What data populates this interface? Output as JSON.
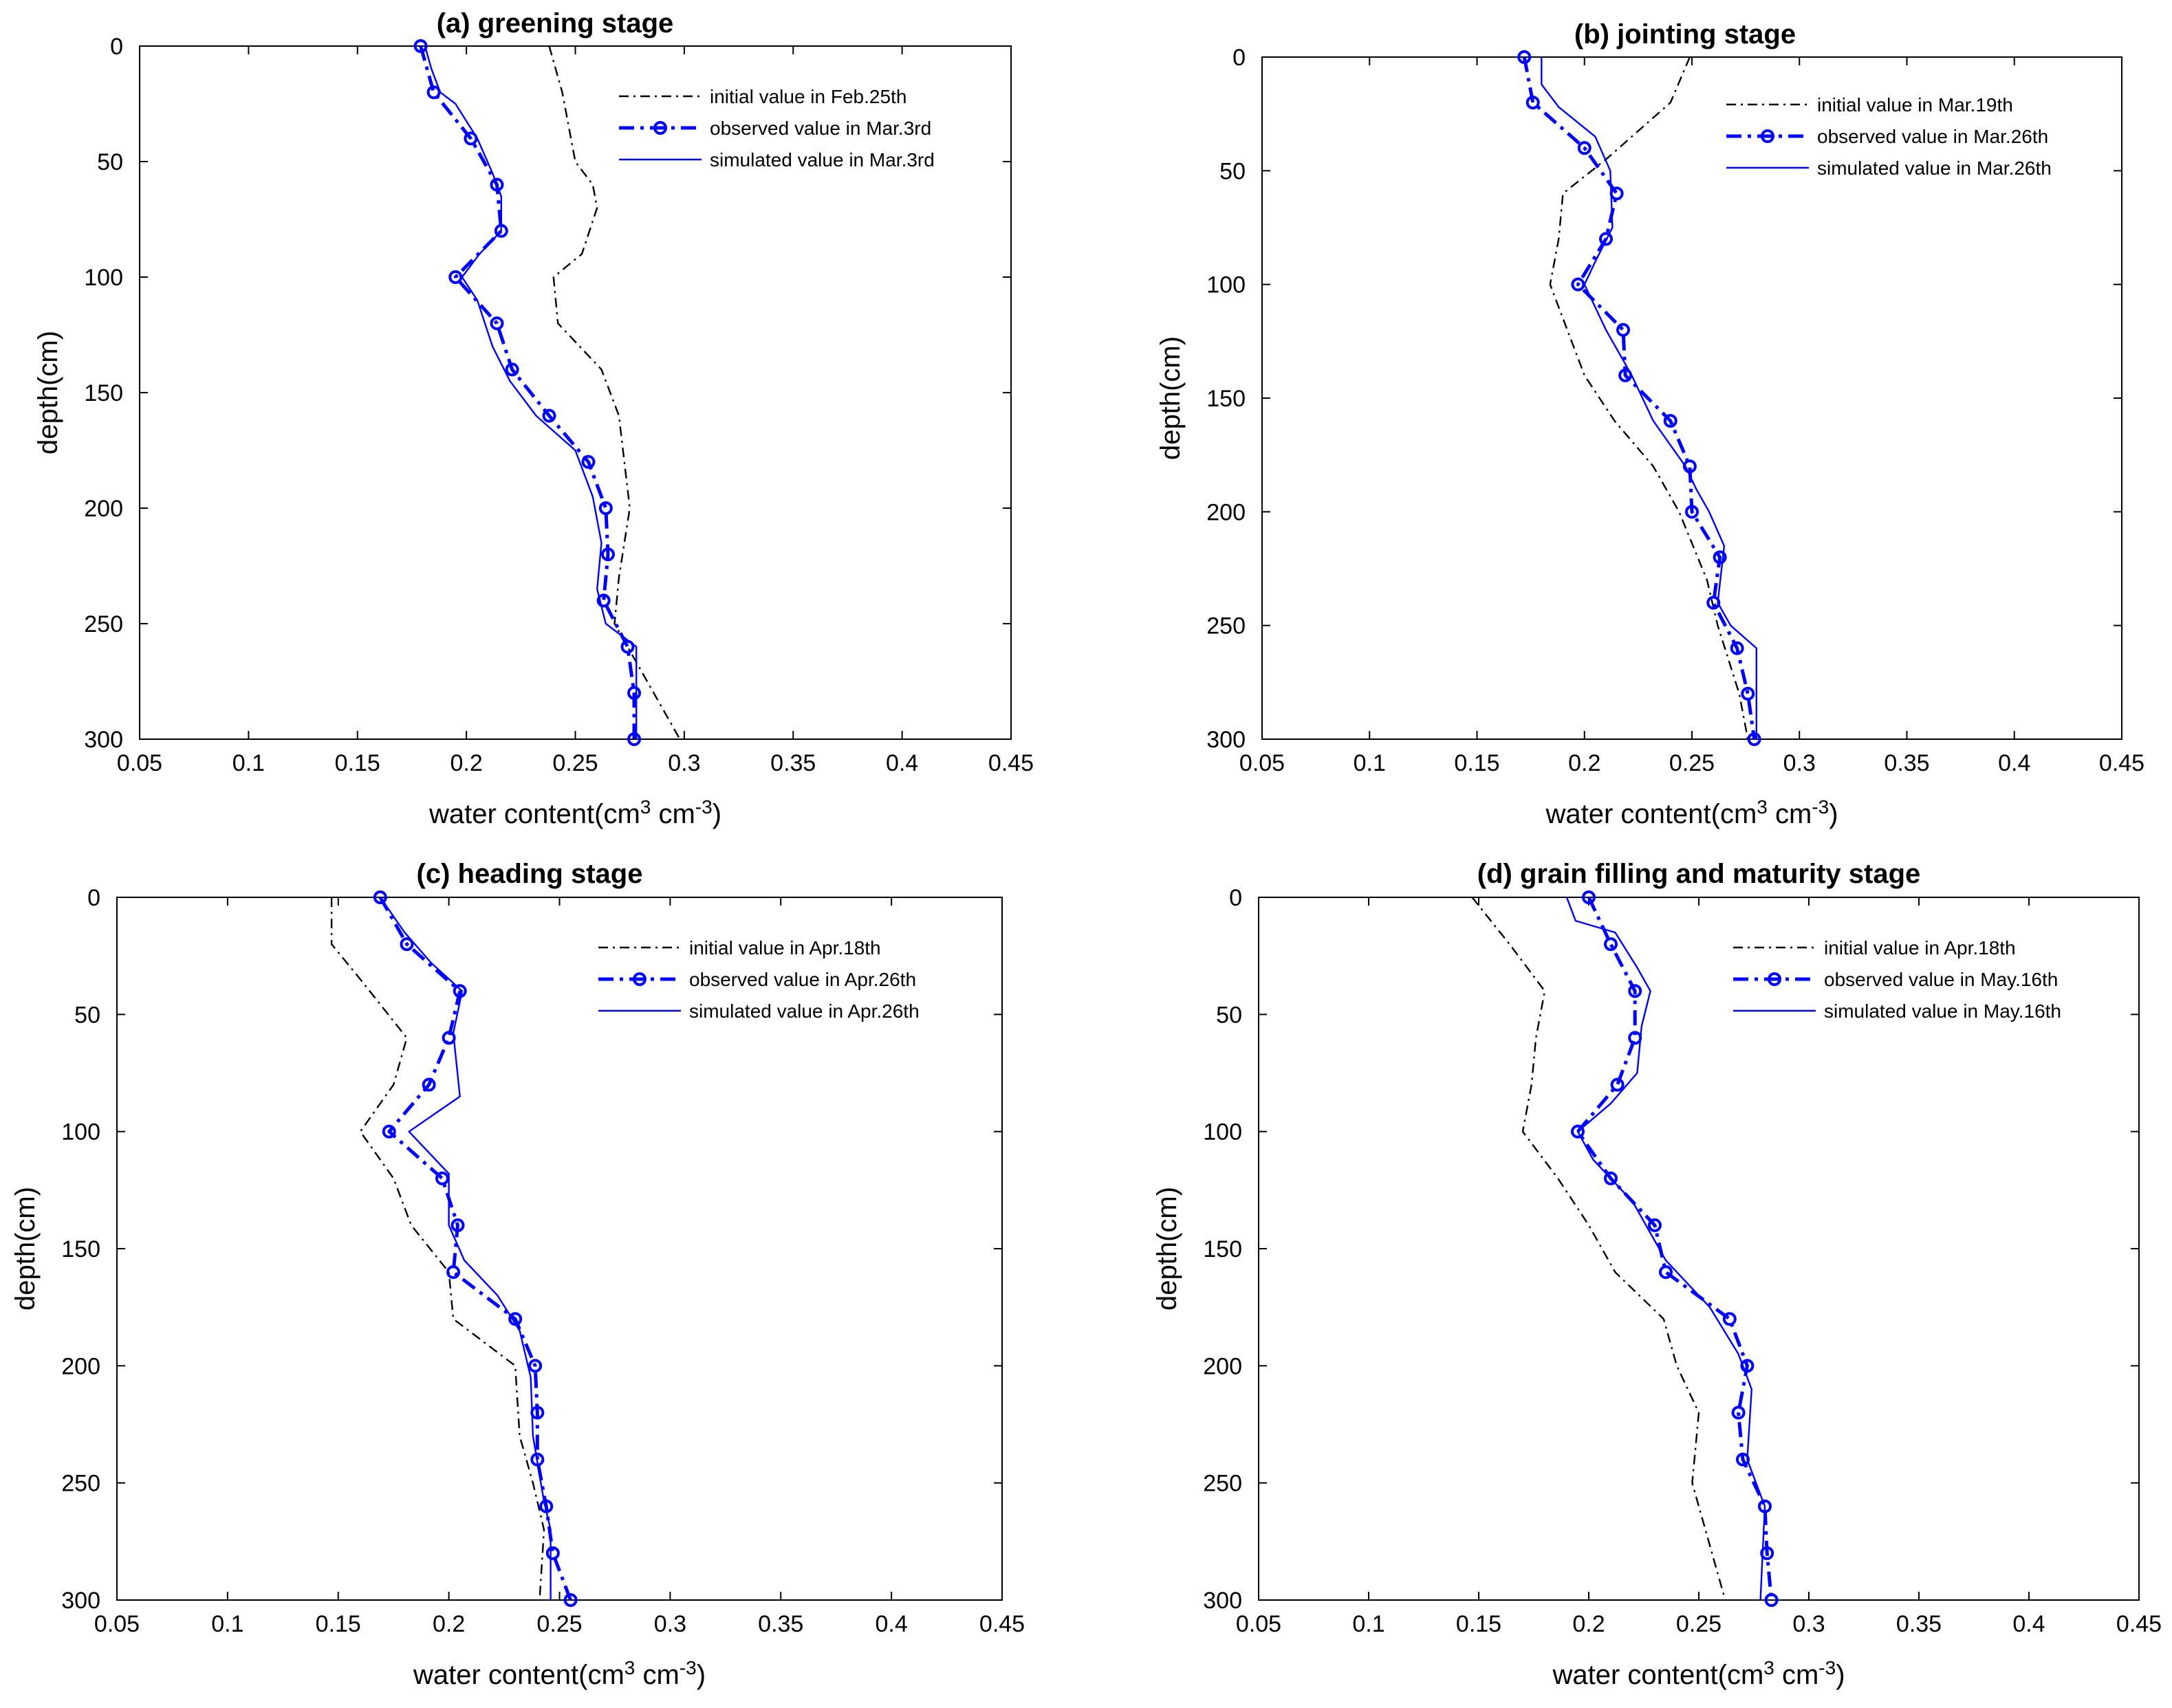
{
  "chart_data": [
    {
      "type": "line",
      "title": "(a) greening stage",
      "xlabel": "water content(cm",
      "xlabel_sup1": "3",
      "xlabel_mid": " cm",
      "xlabel_sup2": "-3",
      "xlabel_end": ")",
      "ylabel": "depth(cm)",
      "xlim": [
        0.05,
        0.45
      ],
      "ylim": [
        0,
        300
      ],
      "y_reversed": true,
      "xticks": [
        0.05,
        0.1,
        0.15,
        0.2,
        0.25,
        0.3,
        0.35,
        0.4,
        0.45
      ],
      "xtick_labels": [
        "0.05",
        "0.1",
        "0.15",
        "0.2",
        "0.25",
        "0.3",
        "0.35",
        "0.4",
        "0.45"
      ],
      "yticks": [
        0,
        50,
        100,
        150,
        200,
        250,
        300
      ],
      "ytick_labels": [
        "0",
        "50",
        "100",
        "150",
        "200",
        "250",
        "300"
      ],
      "legend_position": "top-right",
      "series": [
        {
          "name": "initial value in Feb.25th",
          "style": "dashdot",
          "color": "#000000",
          "points": [
            [
              0.238,
              0
            ],
            [
              0.244,
              20
            ],
            [
              0.25,
              50
            ],
            [
              0.258,
              60
            ],
            [
              0.26,
              70
            ],
            [
              0.253,
              90
            ],
            [
              0.24,
              100
            ],
            [
              0.242,
              120
            ],
            [
              0.262,
              140
            ],
            [
              0.27,
              160
            ],
            [
              0.275,
              200
            ],
            [
              0.27,
              230
            ],
            [
              0.268,
              250
            ],
            [
              0.28,
              270
            ],
            [
              0.298,
              300
            ]
          ]
        },
        {
          "name": "observed value in Mar.3rd",
          "style": "dashdot-marker",
          "color": "#0000FF",
          "points": [
            [
              0.179,
              0
            ],
            [
              0.185,
              20
            ],
            [
              0.202,
              40
            ],
            [
              0.214,
              60
            ],
            [
              0.216,
              80
            ],
            [
              0.195,
              100
            ],
            [
              0.214,
              120
            ],
            [
              0.221,
              140
            ],
            [
              0.238,
              160
            ],
            [
              0.256,
              180
            ],
            [
              0.264,
              200
            ],
            [
              0.265,
              220
            ],
            [
              0.263,
              240
            ],
            [
              0.274,
              260
            ],
            [
              0.277,
              280
            ],
            [
              0.277,
              300
            ]
          ]
        },
        {
          "name": "simulated value in Mar.3rd",
          "style": "solid",
          "color": "#0000FF",
          "points": [
            [
              0.181,
              0
            ],
            [
              0.184,
              10
            ],
            [
              0.188,
              20
            ],
            [
              0.195,
              25
            ],
            [
              0.205,
              40
            ],
            [
              0.212,
              55
            ],
            [
              0.216,
              65
            ],
            [
              0.216,
              80
            ],
            [
              0.206,
              90
            ],
            [
              0.198,
              100
            ],
            [
              0.205,
              110
            ],
            [
              0.212,
              130
            ],
            [
              0.22,
              145
            ],
            [
              0.232,
              160
            ],
            [
              0.25,
              175
            ],
            [
              0.258,
              195
            ],
            [
              0.262,
              215
            ],
            [
              0.26,
              235
            ],
            [
              0.264,
              250
            ],
            [
              0.278,
              260
            ],
            [
              0.278,
              300
            ]
          ]
        }
      ]
    },
    {
      "type": "line",
      "title": "(b) jointing stage",
      "xlabel": "water content(cm",
      "xlabel_sup1": "3",
      "xlabel_mid": " cm",
      "xlabel_sup2": "-3",
      "xlabel_end": ")",
      "ylabel": "depth(cm)",
      "xlim": [
        0.05,
        0.45
      ],
      "ylim": [
        0,
        300
      ],
      "y_reversed": true,
      "xticks": [
        0.05,
        0.1,
        0.15,
        0.2,
        0.25,
        0.3,
        0.35,
        0.4,
        0.45
      ],
      "xtick_labels": [
        "0.05",
        "0.1",
        "0.15",
        "0.2",
        "0.25",
        "0.3",
        "0.35",
        "0.4",
        "0.45"
      ],
      "yticks": [
        0,
        50,
        100,
        150,
        200,
        250,
        300
      ],
      "ytick_labels": [
        "0",
        "50",
        "100",
        "150",
        "200",
        "250",
        "300"
      ],
      "legend_position": "top-right",
      "series": [
        {
          "name": "initial value in Mar.19th",
          "style": "dashdot",
          "color": "#000000",
          "points": [
            [
              0.249,
              0
            ],
            [
              0.24,
              20
            ],
            [
              0.21,
              45
            ],
            [
              0.19,
              60
            ],
            [
              0.188,
              80
            ],
            [
              0.184,
              100
            ],
            [
              0.192,
              120
            ],
            [
              0.2,
              140
            ],
            [
              0.214,
              160
            ],
            [
              0.232,
              180
            ],
            [
              0.244,
              200
            ],
            [
              0.257,
              230
            ],
            [
              0.262,
              250
            ],
            [
              0.272,
              280
            ],
            [
              0.276,
              300
            ]
          ]
        },
        {
          "name": "observed value in Mar.26th",
          "style": "dashdot-marker",
          "color": "#0000FF",
          "points": [
            [
              0.172,
              0
            ],
            [
              0.176,
              20
            ],
            [
              0.2,
              40
            ],
            [
              0.215,
              60
            ],
            [
              0.21,
              80
            ],
            [
              0.197,
              100
            ],
            [
              0.218,
              120
            ],
            [
              0.219,
              140
            ],
            [
              0.24,
              160
            ],
            [
              0.249,
              180
            ],
            [
              0.25,
              200
            ],
            [
              0.263,
              220
            ],
            [
              0.26,
              240
            ],
            [
              0.271,
              260
            ],
            [
              0.276,
              280
            ],
            [
              0.279,
              300
            ]
          ]
        },
        {
          "name": "simulated value in Mar.26th",
          "style": "solid",
          "color": "#0000FF",
          "points": [
            [
              0.18,
              0
            ],
            [
              0.18,
              12
            ],
            [
              0.188,
              22
            ],
            [
              0.205,
              35
            ],
            [
              0.212,
              50
            ],
            [
              0.213,
              75
            ],
            [
              0.205,
              90
            ],
            [
              0.2,
              100
            ],
            [
              0.21,
              120
            ],
            [
              0.222,
              140
            ],
            [
              0.232,
              160
            ],
            [
              0.247,
              180
            ],
            [
              0.252,
              190
            ],
            [
              0.258,
              200
            ],
            [
              0.265,
              215
            ],
            [
              0.262,
              240
            ],
            [
              0.268,
              250
            ],
            [
              0.28,
              260
            ],
            [
              0.28,
              300
            ]
          ]
        }
      ]
    },
    {
      "type": "line",
      "title": "(c) heading stage",
      "xlabel": "water content(cm",
      "xlabel_sup1": "3",
      "xlabel_mid": " cm",
      "xlabel_sup2": "-3",
      "xlabel_end": ")",
      "ylabel": "depth(cm)",
      "xlim": [
        0.05,
        0.45
      ],
      "ylim": [
        0,
        300
      ],
      "y_reversed": true,
      "xticks": [
        0.05,
        0.1,
        0.15,
        0.2,
        0.25,
        0.3,
        0.35,
        0.4,
        0.45
      ],
      "xtick_labels": [
        "0.05",
        "0.1",
        "0.15",
        "0.2",
        "0.25",
        "0.3",
        "0.35",
        "0.4",
        "0.45"
      ],
      "yticks": [
        0,
        50,
        100,
        150,
        200,
        250,
        300
      ],
      "ytick_labels": [
        "0",
        "50",
        "100",
        "150",
        "200",
        "250",
        "300"
      ],
      "legend_position": "top-right",
      "series": [
        {
          "name": "initial value in Apr.18th",
          "style": "dashdot",
          "color": "#000000",
          "points": [
            [
              0.147,
              0
            ],
            [
              0.147,
              20
            ],
            [
              0.16,
              35
            ],
            [
              0.181,
              60
            ],
            [
              0.175,
              80
            ],
            [
              0.16,
              100
            ],
            [
              0.175,
              120
            ],
            [
              0.183,
              140
            ],
            [
              0.2,
              160
            ],
            [
              0.202,
              180
            ],
            [
              0.23,
              200
            ],
            [
              0.232,
              230
            ],
            [
              0.238,
              250
            ],
            [
              0.243,
              270
            ],
            [
              0.241,
              300
            ]
          ]
        },
        {
          "name": "observed value in Apr.26th",
          "style": "dashdot-marker",
          "color": "#0000FF",
          "points": [
            [
              0.169,
              0
            ],
            [
              0.181,
              20
            ],
            [
              0.205,
              40
            ],
            [
              0.2,
              60
            ],
            [
              0.191,
              80
            ],
            [
              0.173,
              100
            ],
            [
              0.197,
              120
            ],
            [
              0.204,
              140
            ],
            [
              0.202,
              160
            ],
            [
              0.23,
              180
            ],
            [
              0.239,
              200
            ],
            [
              0.24,
              220
            ],
            [
              0.24,
              240
            ],
            [
              0.244,
              260
            ],
            [
              0.247,
              280
            ],
            [
              0.255,
              300
            ]
          ]
        },
        {
          "name": "simulated value in Apr.26th",
          "style": "solid",
          "color": "#0000FF",
          "points": [
            [
              0.169,
              0
            ],
            [
              0.18,
              15
            ],
            [
              0.192,
              28
            ],
            [
              0.206,
              40
            ],
            [
              0.202,
              58
            ],
            [
              0.205,
              85
            ],
            [
              0.182,
              100
            ],
            [
              0.2,
              118
            ],
            [
              0.2,
              140
            ],
            [
              0.207,
              155
            ],
            [
              0.222,
              170
            ],
            [
              0.232,
              185
            ],
            [
              0.237,
              205
            ],
            [
              0.238,
              230
            ],
            [
              0.243,
              258
            ],
            [
              0.246,
              270
            ],
            [
              0.246,
              300
            ]
          ]
        }
      ]
    },
    {
      "type": "line",
      "title": "(d) grain filling and maturity stage",
      "xlabel": "water content(cm",
      "xlabel_sup1": "3",
      "xlabel_mid": " cm",
      "xlabel_sup2": "-3",
      "xlabel_end": ")",
      "ylabel": "depth(cm)",
      "xlim": [
        0.05,
        0.45
      ],
      "ylim": [
        0,
        300
      ],
      "y_reversed": true,
      "xticks": [
        0.05,
        0.1,
        0.15,
        0.2,
        0.25,
        0.3,
        0.35,
        0.4,
        0.45
      ],
      "xtick_labels": [
        "0.05",
        "0.1",
        "0.15",
        "0.2",
        "0.25",
        "0.3",
        "0.35",
        "0.4",
        "0.45"
      ],
      "yticks": [
        0,
        50,
        100,
        150,
        200,
        250,
        300
      ],
      "ytick_labels": [
        "0",
        "50",
        "100",
        "150",
        "200",
        "250",
        "300"
      ],
      "legend_position": "top-right",
      "series": [
        {
          "name": "initial value in Apr.18th",
          "style": "dashdot",
          "color": "#000000",
          "points": [
            [
              0.147,
              0
            ],
            [
              0.164,
              20
            ],
            [
              0.18,
              40
            ],
            [
              0.176,
              60
            ],
            [
              0.174,
              80
            ],
            [
              0.17,
              100
            ],
            [
              0.186,
              120
            ],
            [
              0.2,
              140
            ],
            [
              0.212,
              160
            ],
            [
              0.234,
              180
            ],
            [
              0.24,
              200
            ],
            [
              0.25,
              220
            ],
            [
              0.247,
              250
            ],
            [
              0.253,
              270
            ],
            [
              0.262,
              300
            ]
          ]
        },
        {
          "name": "observed value in May.16th",
          "style": "dashdot-marker",
          "color": "#0000FF",
          "points": [
            [
              0.2,
              0
            ],
            [
              0.21,
              20
            ],
            [
              0.221,
              40
            ],
            [
              0.221,
              60
            ],
            [
              0.213,
              80
            ],
            [
              0.195,
              100
            ],
            [
              0.21,
              120
            ],
            [
              0.23,
              140
            ],
            [
              0.235,
              160
            ],
            [
              0.264,
              180
            ],
            [
              0.272,
              200
            ],
            [
              0.268,
              220
            ],
            [
              0.27,
              240
            ],
            [
              0.28,
              260
            ],
            [
              0.281,
              280
            ],
            [
              0.283,
              300
            ]
          ]
        },
        {
          "name": "simulated value in May.16th",
          "style": "solid",
          "color": "#0000FF",
          "points": [
            [
              0.19,
              0
            ],
            [
              0.194,
              10
            ],
            [
              0.212,
              15
            ],
            [
              0.222,
              30
            ],
            [
              0.228,
              40
            ],
            [
              0.224,
              55
            ],
            [
              0.222,
              75
            ],
            [
              0.21,
              88
            ],
            [
              0.195,
              100
            ],
            [
              0.202,
              112
            ],
            [
              0.22,
              130
            ],
            [
              0.235,
              155
            ],
            [
              0.255,
              175
            ],
            [
              0.268,
              195
            ],
            [
              0.274,
              210
            ],
            [
              0.272,
              240
            ],
            [
              0.28,
              260
            ],
            [
              0.278,
              300
            ]
          ]
        }
      ]
    }
  ]
}
